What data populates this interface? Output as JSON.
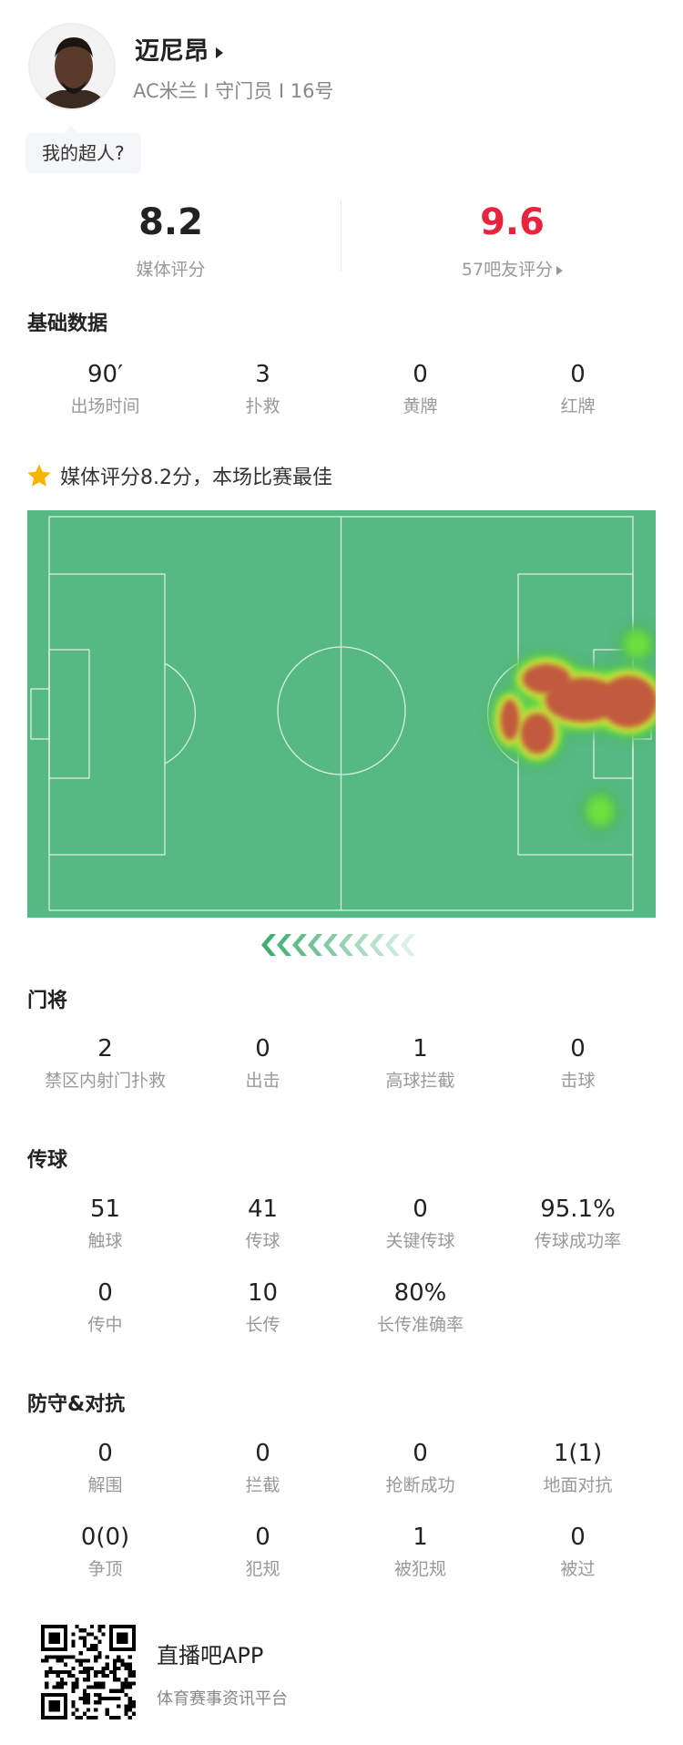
{
  "player": {
    "name": "迈尼昂",
    "subtitle": "AC米兰 I 守门员 I 16号",
    "bubble": "我的超人?"
  },
  "ratings": {
    "media": {
      "value": "8.2",
      "label": "媒体评分"
    },
    "fans": {
      "value": "9.6",
      "label": "57吧友评分",
      "color": "#e8243c"
    }
  },
  "basic": {
    "title": "基础数据",
    "items": [
      {
        "v": "90′",
        "l": "出场时间"
      },
      {
        "v": "3",
        "l": "扑救"
      },
      {
        "v": "0",
        "l": "黄牌"
      },
      {
        "v": "0",
        "l": "红牌"
      }
    ]
  },
  "highlight": {
    "icon": "star-icon",
    "text": "媒体评分8.2分，本场比赛最佳",
    "star_color": "#f7b500"
  },
  "pitch": {
    "color": "#56b882",
    "line_color": "#d8efe2",
    "attack_direction": "left"
  },
  "goalkeeping": {
    "title": "门将",
    "items": [
      {
        "v": "2",
        "l": "禁区内射门扑救"
      },
      {
        "v": "0",
        "l": "出击"
      },
      {
        "v": "1",
        "l": "高球拦截"
      },
      {
        "v": "0",
        "l": "击球"
      }
    ]
  },
  "passing": {
    "title": "传球",
    "items": [
      {
        "v": "51",
        "l": "触球"
      },
      {
        "v": "41",
        "l": "传球"
      },
      {
        "v": "0",
        "l": "关键传球"
      },
      {
        "v": "95.1%",
        "l": "传球成功率"
      },
      {
        "v": "0",
        "l": "传中"
      },
      {
        "v": "10",
        "l": "长传"
      },
      {
        "v": "80%",
        "l": "长传准确率"
      }
    ]
  },
  "defense": {
    "title": "防守&对抗",
    "items": [
      {
        "v": "0",
        "l": "解围"
      },
      {
        "v": "0",
        "l": "拦截"
      },
      {
        "v": "0",
        "l": "抢断成功"
      },
      {
        "v": "1(1)",
        "l": "地面对抗"
      },
      {
        "v": "0(0)",
        "l": "争顶"
      },
      {
        "v": "0",
        "l": "犯规"
      },
      {
        "v": "1",
        "l": "被犯规"
      },
      {
        "v": "0",
        "l": "被过"
      }
    ]
  },
  "footer": {
    "app": "直播吧APP",
    "slogan": "体育赛事资讯平台"
  }
}
